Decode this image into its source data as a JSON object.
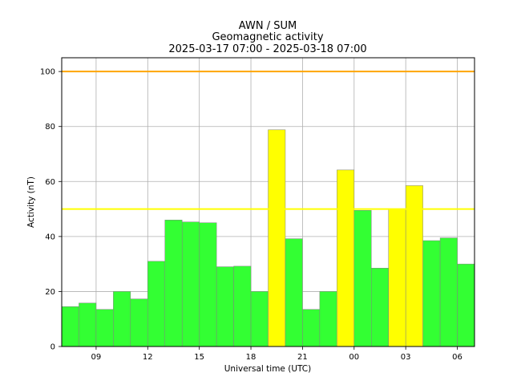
{
  "chart_data": {
    "type": "bar",
    "title_lines": [
      "AWN / SUM",
      "Geomagnetic activity",
      "2025-03-17 07:00 - 2025-03-18 07:00"
    ],
    "xlabel": "Universal time (UTC)",
    "ylabel": "Activity (nT)",
    "ylim": [
      0,
      105
    ],
    "yticks": [
      0,
      20,
      40,
      60,
      80,
      100
    ],
    "x_range_hours": [
      0,
      24
    ],
    "xticks": [
      {
        "hour": 2,
        "label": "09"
      },
      {
        "hour": 5,
        "label": "12"
      },
      {
        "hour": 8,
        "label": "15"
      },
      {
        "hour": 11,
        "label": "18"
      },
      {
        "hour": 14,
        "label": "21"
      },
      {
        "hour": 17,
        "label": "00"
      },
      {
        "hour": 20,
        "label": "03"
      },
      {
        "hour": 23,
        "label": "06"
      }
    ],
    "grid": true,
    "categories": [
      "07",
      "08",
      "09",
      "10",
      "11",
      "12",
      "13",
      "14",
      "15",
      "16",
      "17",
      "18",
      "19",
      "20",
      "21",
      "22",
      "23",
      "00",
      "01",
      "02",
      "03",
      "04",
      "05",
      "06"
    ],
    "values": [
      14.5,
      15.8,
      13.5,
      20.0,
      17.3,
      31.0,
      46.0,
      45.3,
      45.0,
      29.0,
      29.2,
      20.0,
      78.8,
      39.2,
      13.5,
      20.0,
      64.2,
      49.5,
      28.5,
      50.0,
      58.5,
      38.5,
      39.5,
      30.0
    ],
    "bar_colors": {
      "below_50": "#33ff33",
      "at_or_above_50": "#ffff00"
    },
    "reference_lines": [
      {
        "y": 100,
        "color": "#ffa500"
      },
      {
        "y": 50,
        "color": "#ffff00"
      }
    ]
  }
}
